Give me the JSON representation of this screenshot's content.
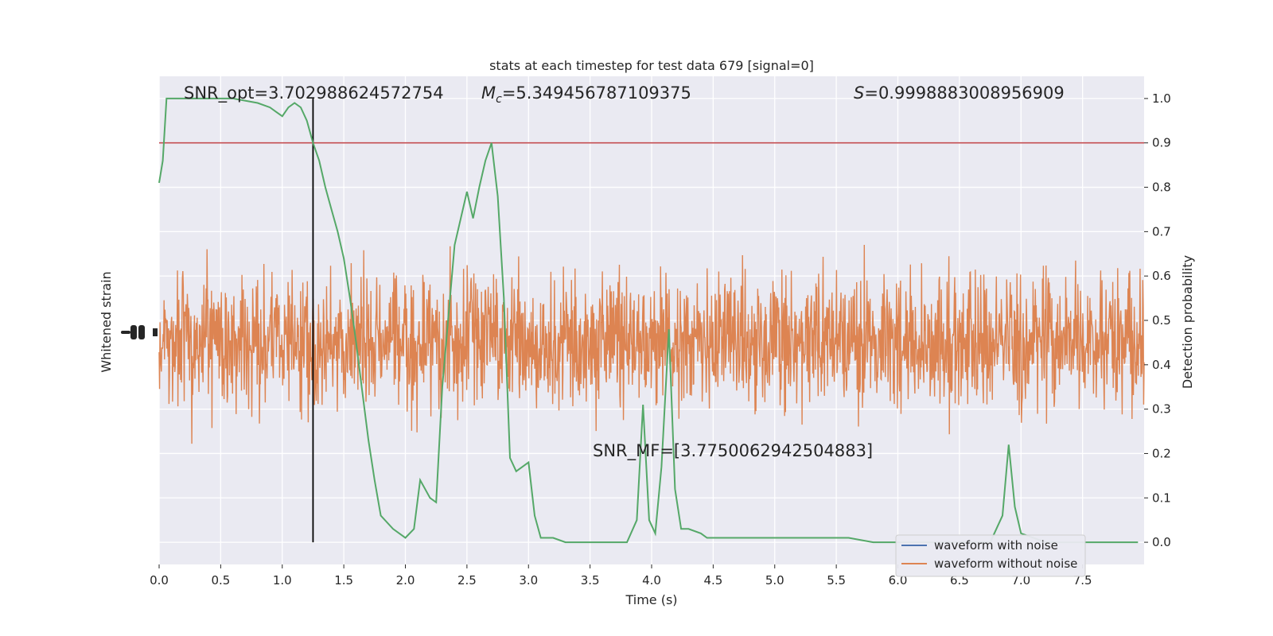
{
  "chart_data": {
    "type": "line",
    "title": "stats at each timestep for test data 679 [signal=0]",
    "xlabel": "Time (s)",
    "ylabel_left": "Whitened strain",
    "ylabel_right": "Detection probability",
    "xlim": [
      0,
      8.0
    ],
    "ylim_right": [
      -0.05,
      1.05
    ],
    "x_ticks": [
      "0.0",
      "0.5",
      "1.0",
      "1.5",
      "2.0",
      "2.5",
      "3.0",
      "3.5",
      "4.0",
      "4.5",
      "5.0",
      "5.5",
      "6.0",
      "6.5",
      "7.0",
      "7.5"
    ],
    "y_ticks_right": [
      "0.0",
      "0.1",
      "0.2",
      "0.3",
      "0.4",
      "0.5",
      "0.6",
      "0.7",
      "0.8",
      "0.9",
      "1.0"
    ],
    "grid": true,
    "legend": {
      "location": "lower right",
      "entries": [
        {
          "label": "waveform with noise",
          "color": "#4c72b0"
        },
        {
          "label": "waveform without noise",
          "color": "#dd8452"
        }
      ]
    },
    "annotations": {
      "snr_opt": "SNR_opt=3.702988624572754",
      "mc_symbol": "M",
      "mc_sub": "c",
      "mc_value": "=5.349456787109375",
      "s_symbol": "S",
      "s_value": "=0.9998883008956909",
      "snr_mf": "SNR_MF=[3.7750062942504883]"
    },
    "threshold": {
      "value": 0.9,
      "color": "#c44e52"
    },
    "marker_time": 1.25,
    "noise_color": "#dd8452",
    "prob_color": "#55a868",
    "series": [
      {
        "name": "Detection probability",
        "x": [
          0.0,
          0.03,
          0.06,
          0.1,
          0.2,
          0.4,
          0.6,
          0.8,
          0.9,
          0.95,
          1.0,
          1.05,
          1.1,
          1.15,
          1.2,
          1.25,
          1.3,
          1.35,
          1.4,
          1.45,
          1.5,
          1.55,
          1.6,
          1.65,
          1.7,
          1.75,
          1.8,
          1.9,
          2.0,
          2.07,
          2.12,
          2.2,
          2.25,
          2.3,
          2.4,
          2.5,
          2.55,
          2.6,
          2.65,
          2.7,
          2.75,
          2.8,
          2.85,
          2.9,
          3.0,
          3.05,
          3.1,
          3.15,
          3.2,
          3.3,
          3.5,
          3.8,
          3.88,
          3.93,
          3.98,
          4.03,
          4.08,
          4.14,
          4.19,
          4.24,
          4.3,
          4.4,
          4.45,
          4.6,
          4.8,
          5.0,
          5.2,
          5.4,
          5.6,
          5.8,
          6.0,
          6.2,
          6.5,
          6.75,
          6.85,
          6.9,
          6.95,
          7.0,
          7.2,
          7.5,
          7.95
        ],
        "y": [
          0.81,
          0.86,
          1.0,
          1.0,
          1.0,
          1.0,
          1.0,
          0.99,
          0.98,
          0.97,
          0.96,
          0.98,
          0.99,
          0.98,
          0.95,
          0.9,
          0.86,
          0.8,
          0.75,
          0.7,
          0.64,
          0.55,
          0.45,
          0.34,
          0.23,
          0.14,
          0.06,
          0.03,
          0.01,
          0.03,
          0.14,
          0.1,
          0.09,
          0.35,
          0.67,
          0.79,
          0.73,
          0.8,
          0.86,
          0.9,
          0.78,
          0.55,
          0.19,
          0.16,
          0.18,
          0.06,
          0.01,
          0.01,
          0.01,
          0.0,
          0.0,
          0.0,
          0.05,
          0.31,
          0.05,
          0.02,
          0.17,
          0.48,
          0.12,
          0.03,
          0.03,
          0.02,
          0.01,
          0.01,
          0.01,
          0.01,
          0.01,
          0.01,
          0.01,
          0.0,
          0.0,
          0.0,
          0.0,
          0.0,
          0.06,
          0.22,
          0.08,
          0.02,
          0.0,
          0.0,
          0.0
        ]
      }
    ]
  }
}
